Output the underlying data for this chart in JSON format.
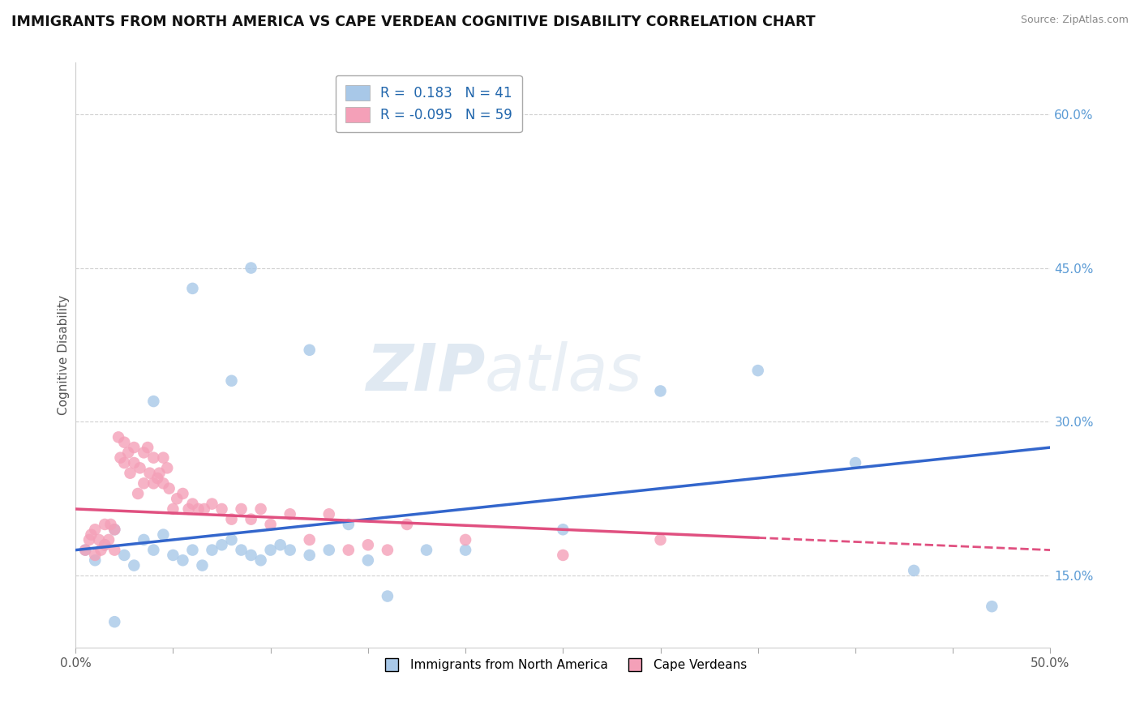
{
  "title": "IMMIGRANTS FROM NORTH AMERICA VS CAPE VERDEAN COGNITIVE DISABILITY CORRELATION CHART",
  "source": "Source: ZipAtlas.com",
  "ylabel": "Cognitive Disability",
  "xlim": [
    0.0,
    0.5
  ],
  "ylim": [
    0.08,
    0.65
  ],
  "xticks": [
    0.0,
    0.05,
    0.1,
    0.15,
    0.2,
    0.25,
    0.3,
    0.35,
    0.4,
    0.45,
    0.5
  ],
  "xtick_labels_show": [
    "0.0%",
    "",
    "",
    "",
    "",
    "",
    "",
    "",
    "",
    "",
    "50.0%"
  ],
  "yticks": [
    0.15,
    0.3,
    0.45,
    0.6
  ],
  "ytick_labels": [
    "15.0%",
    "30.0%",
    "45.0%",
    "60.0%"
  ],
  "blue_R": 0.183,
  "blue_N": 41,
  "pink_R": -0.095,
  "pink_N": 59,
  "blue_color": "#a8c8e8",
  "pink_color": "#f4a0b8",
  "blue_line_color": "#3366cc",
  "pink_line_color": "#e05080",
  "watermark": "ZIPatlas",
  "legend_label_blue": "Immigrants from North America",
  "legend_label_pink": "Cape Verdeans",
  "blue_scatter_x": [
    0.005,
    0.01,
    0.015,
    0.02,
    0.025,
    0.03,
    0.035,
    0.04,
    0.045,
    0.05,
    0.055,
    0.06,
    0.065,
    0.07,
    0.075,
    0.08,
    0.085,
    0.09,
    0.095,
    0.1,
    0.105,
    0.11,
    0.12,
    0.13,
    0.14,
    0.15,
    0.16,
    0.18,
    0.2,
    0.25,
    0.3,
    0.35,
    0.4,
    0.43,
    0.47,
    0.06,
    0.09,
    0.12,
    0.08,
    0.04,
    0.02
  ],
  "blue_scatter_y": [
    0.175,
    0.165,
    0.18,
    0.195,
    0.17,
    0.16,
    0.185,
    0.175,
    0.19,
    0.17,
    0.165,
    0.175,
    0.16,
    0.175,
    0.18,
    0.185,
    0.175,
    0.17,
    0.165,
    0.175,
    0.18,
    0.175,
    0.17,
    0.175,
    0.2,
    0.165,
    0.13,
    0.175,
    0.175,
    0.195,
    0.33,
    0.35,
    0.26,
    0.155,
    0.12,
    0.43,
    0.45,
    0.37,
    0.34,
    0.32,
    0.105
  ],
  "pink_scatter_x": [
    0.005,
    0.007,
    0.008,
    0.01,
    0.01,
    0.012,
    0.013,
    0.015,
    0.015,
    0.017,
    0.018,
    0.02,
    0.02,
    0.022,
    0.023,
    0.025,
    0.025,
    0.027,
    0.028,
    0.03,
    0.03,
    0.032,
    0.033,
    0.035,
    0.035,
    0.037,
    0.038,
    0.04,
    0.04,
    0.042,
    0.043,
    0.045,
    0.045,
    0.047,
    0.048,
    0.05,
    0.052,
    0.055,
    0.058,
    0.06,
    0.063,
    0.066,
    0.07,
    0.075,
    0.08,
    0.085,
    0.09,
    0.095,
    0.1,
    0.11,
    0.12,
    0.13,
    0.14,
    0.15,
    0.16,
    0.17,
    0.2,
    0.25,
    0.3
  ],
  "pink_scatter_y": [
    0.175,
    0.185,
    0.19,
    0.17,
    0.195,
    0.185,
    0.175,
    0.2,
    0.18,
    0.185,
    0.2,
    0.175,
    0.195,
    0.285,
    0.265,
    0.26,
    0.28,
    0.27,
    0.25,
    0.26,
    0.275,
    0.23,
    0.255,
    0.27,
    0.24,
    0.275,
    0.25,
    0.265,
    0.24,
    0.245,
    0.25,
    0.24,
    0.265,
    0.255,
    0.235,
    0.215,
    0.225,
    0.23,
    0.215,
    0.22,
    0.215,
    0.215,
    0.22,
    0.215,
    0.205,
    0.215,
    0.205,
    0.215,
    0.2,
    0.21,
    0.185,
    0.21,
    0.175,
    0.18,
    0.175,
    0.2,
    0.185,
    0.17,
    0.185
  ],
  "blue_line_x": [
    0.0,
    0.5
  ],
  "blue_line_y_start": 0.175,
  "blue_line_y_end": 0.275,
  "pink_line_x": [
    0.0,
    0.5
  ],
  "pink_line_y_start": 0.215,
  "pink_line_y_end": 0.175
}
